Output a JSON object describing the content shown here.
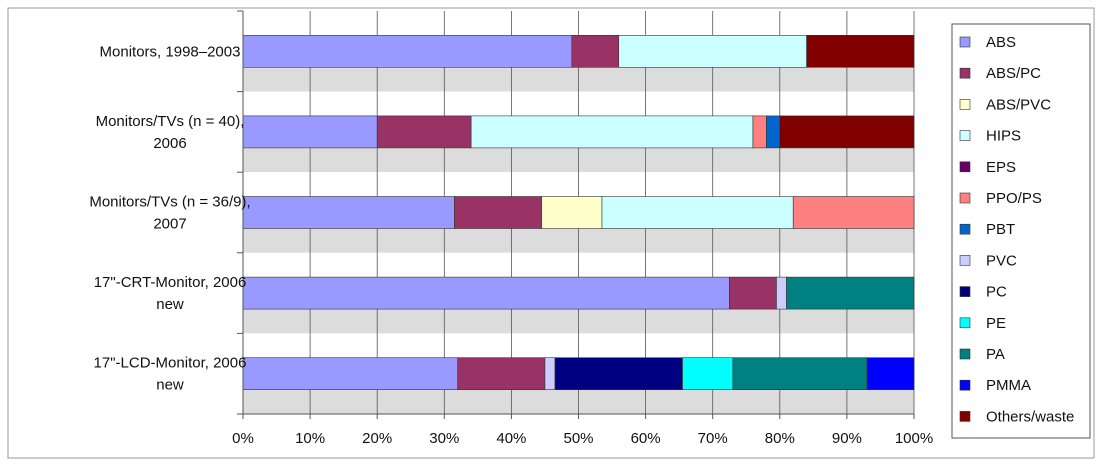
{
  "chart_data": {
    "type": "bar",
    "orientation": "horizontal",
    "stacked": "percent",
    "title": "",
    "xlabel": "",
    "ylabel": "",
    "xlim": [
      0,
      100
    ],
    "grid": true,
    "legend_position": "right",
    "categories": [
      [
        "Monitors, 1998–2003"
      ],
      [
        "Monitors/TVs (n = 40),",
        "2006"
      ],
      [
        "Monitors/TVs (n = 36/9),",
        "2007"
      ],
      [
        "17\"-CRT-Monitor, 2006",
        "new"
      ],
      [
        "17\"-LCD-Monitor, 2006",
        "new"
      ]
    ],
    "x_ticks": [
      "0%",
      "10%",
      "20%",
      "30%",
      "40%",
      "50%",
      "60%",
      "70%",
      "80%",
      "90%",
      "100%"
    ],
    "series": [
      {
        "name": "ABS",
        "color": "#9999ff",
        "values": [
          49,
          20,
          31.5,
          72.5,
          32
        ]
      },
      {
        "name": "ABS/PC",
        "color": "#993366",
        "values": [
          7,
          14,
          13,
          7,
          13
        ]
      },
      {
        "name": "ABS/PVC",
        "color": "#ffffcc",
        "values": [
          0,
          0,
          9,
          0,
          0
        ]
      },
      {
        "name": "HIPS",
        "color": "#ccffff",
        "values": [
          28,
          42,
          28.5,
          0,
          0
        ]
      },
      {
        "name": "EPS",
        "color": "#660066",
        "values": [
          0,
          0,
          0,
          0,
          0
        ]
      },
      {
        "name": "PPO/PS",
        "color": "#ff8080",
        "values": [
          0,
          2,
          18,
          0,
          0
        ]
      },
      {
        "name": "PBT",
        "color": "#0066cc",
        "values": [
          0,
          2,
          0,
          0,
          0
        ]
      },
      {
        "name": "PVC",
        "color": "#ccccff",
        "values": [
          0,
          0,
          0,
          1.5,
          1.5
        ]
      },
      {
        "name": "PC",
        "color": "#000080",
        "values": [
          0,
          0,
          0,
          0,
          19
        ]
      },
      {
        "name": "PE",
        "color": "#00ffff",
        "values": [
          0,
          0,
          0,
          0,
          7.5
        ]
      },
      {
        "name": "PA",
        "color": "#008080",
        "values": [
          0,
          0,
          0,
          19,
          20
        ]
      },
      {
        "name": "PMMA",
        "color": "#0000ff",
        "values": [
          0,
          0,
          0,
          0,
          7
        ]
      },
      {
        "name": "Others/waste",
        "color": "#800000",
        "values": [
          16,
          20,
          0,
          0,
          0
        ]
      }
    ]
  }
}
